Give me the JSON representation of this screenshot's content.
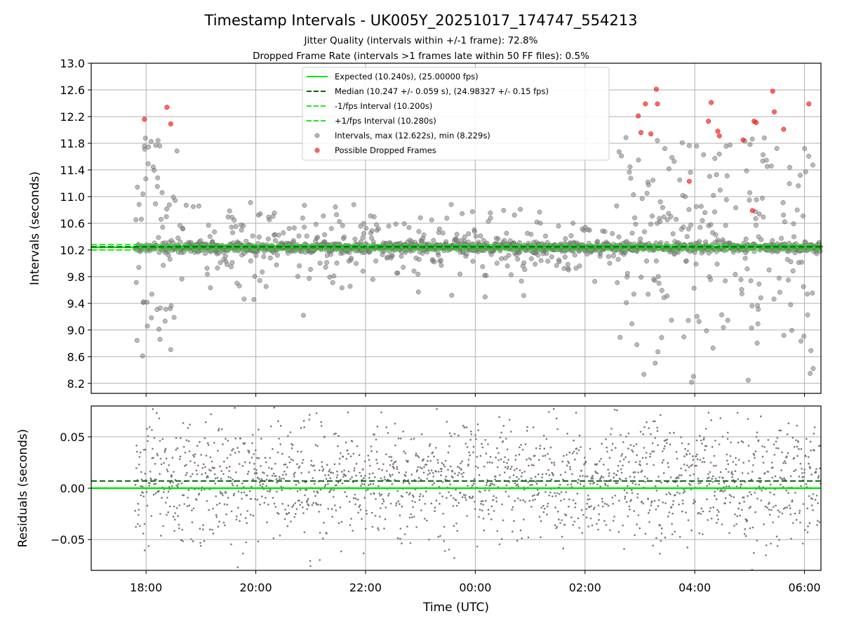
{
  "chart_data": [
    {
      "type": "scatter",
      "title": "Timestamp Intervals - UK005Y_20251017_174747_554213",
      "subtitle_lines": [
        "Jitter Quality (intervals within +/-1 frame): 72.8%",
        "Dropped Frame Rate (intervals >1 frames late within 50 FF files): 0.5%"
      ],
      "ylabel": "Intervals (seconds)",
      "ylim": [
        8.05,
        13.0
      ],
      "xlim_hours": [
        17.0,
        30.3
      ],
      "yticks": [
        "8.2",
        "8.6",
        "9.0",
        "9.4",
        "9.8",
        "10.2",
        "10.6",
        "11.0",
        "11.4",
        "11.8",
        "12.2",
        "12.6",
        "13.0"
      ],
      "ytick_values": [
        8.2,
        8.6,
        9.0,
        9.4,
        9.8,
        10.2,
        10.6,
        11.0,
        11.4,
        11.8,
        12.2,
        12.6,
        13.0
      ],
      "grid": true,
      "legend_position": "top-center",
      "reference_lines": {
        "expected": 10.24,
        "median": 10.247,
        "lower_fps": 10.2,
        "upper_fps": 10.28
      },
      "legend": [
        {
          "label": "Expected (10.240s), (25.00000 fps)",
          "style": "solid",
          "color": "#00e600"
        },
        {
          "label": "Median (10.247 +/- 0.059 s), (24.98327 +/- 0.15 fps)",
          "style": "dashed",
          "color": "#006400"
        },
        {
          "label": "-1/fps Interval (10.200s)",
          "style": "dashed",
          "color": "#1ee61e"
        },
        {
          "label": "+1/fps Interval (10.280s)",
          "style": "dashed",
          "color": "#1ee61e"
        },
        {
          "label": "Intervals, max (12.622s), min (8.229s)",
          "style": "marker",
          "color": "#808080"
        },
        {
          "label": "Possible Dropped Frames",
          "style": "marker",
          "color": "#ff0000"
        }
      ],
      "series": [
        {
          "name": "Possible Dropped Frames",
          "color": "#ff0000",
          "x_hours": [
            17.97,
            18.38,
            18.45,
            26.97,
            27.02,
            27.1,
            27.2,
            27.3,
            27.32,
            27.9,
            28.25,
            28.3,
            28.42,
            28.45,
            28.88,
            29.05,
            29.08,
            29.12,
            29.42,
            29.45,
            29.62,
            30.08
          ],
          "y": [
            12.16,
            12.34,
            12.09,
            12.21,
            11.96,
            12.39,
            11.94,
            12.61,
            12.39,
            11.23,
            12.13,
            12.41,
            11.98,
            11.91,
            11.85,
            10.79,
            12.13,
            12.11,
            12.58,
            12.27,
            12.01,
            12.39
          ]
        }
      ],
      "intervals_summary": {
        "max": 12.622,
        "min": 8.229
      }
    },
    {
      "type": "scatter",
      "ylabel": "Residuals (seconds)",
      "xlabel": "Time (UTC)",
      "ylim": [
        -0.08,
        0.08
      ],
      "yticks": [
        "0.05",
        "0.00",
        "−0.05"
      ],
      "ytick_values": [
        0.05,
        0.0,
        -0.05
      ],
      "xticks": [
        "18:00",
        "20:00",
        "22:00",
        "00:00",
        "02:00",
        "04:00",
        "06:00"
      ],
      "xtick_hours": [
        18,
        20,
        22,
        24,
        26,
        28,
        30
      ],
      "reference_lines": {
        "expected": 0.0,
        "median": 0.007
      },
      "grid": true
    }
  ],
  "colors": {
    "expected": "#00e600",
    "median": "#006400",
    "interval": "#808080",
    "dropped": "#ff0000"
  }
}
